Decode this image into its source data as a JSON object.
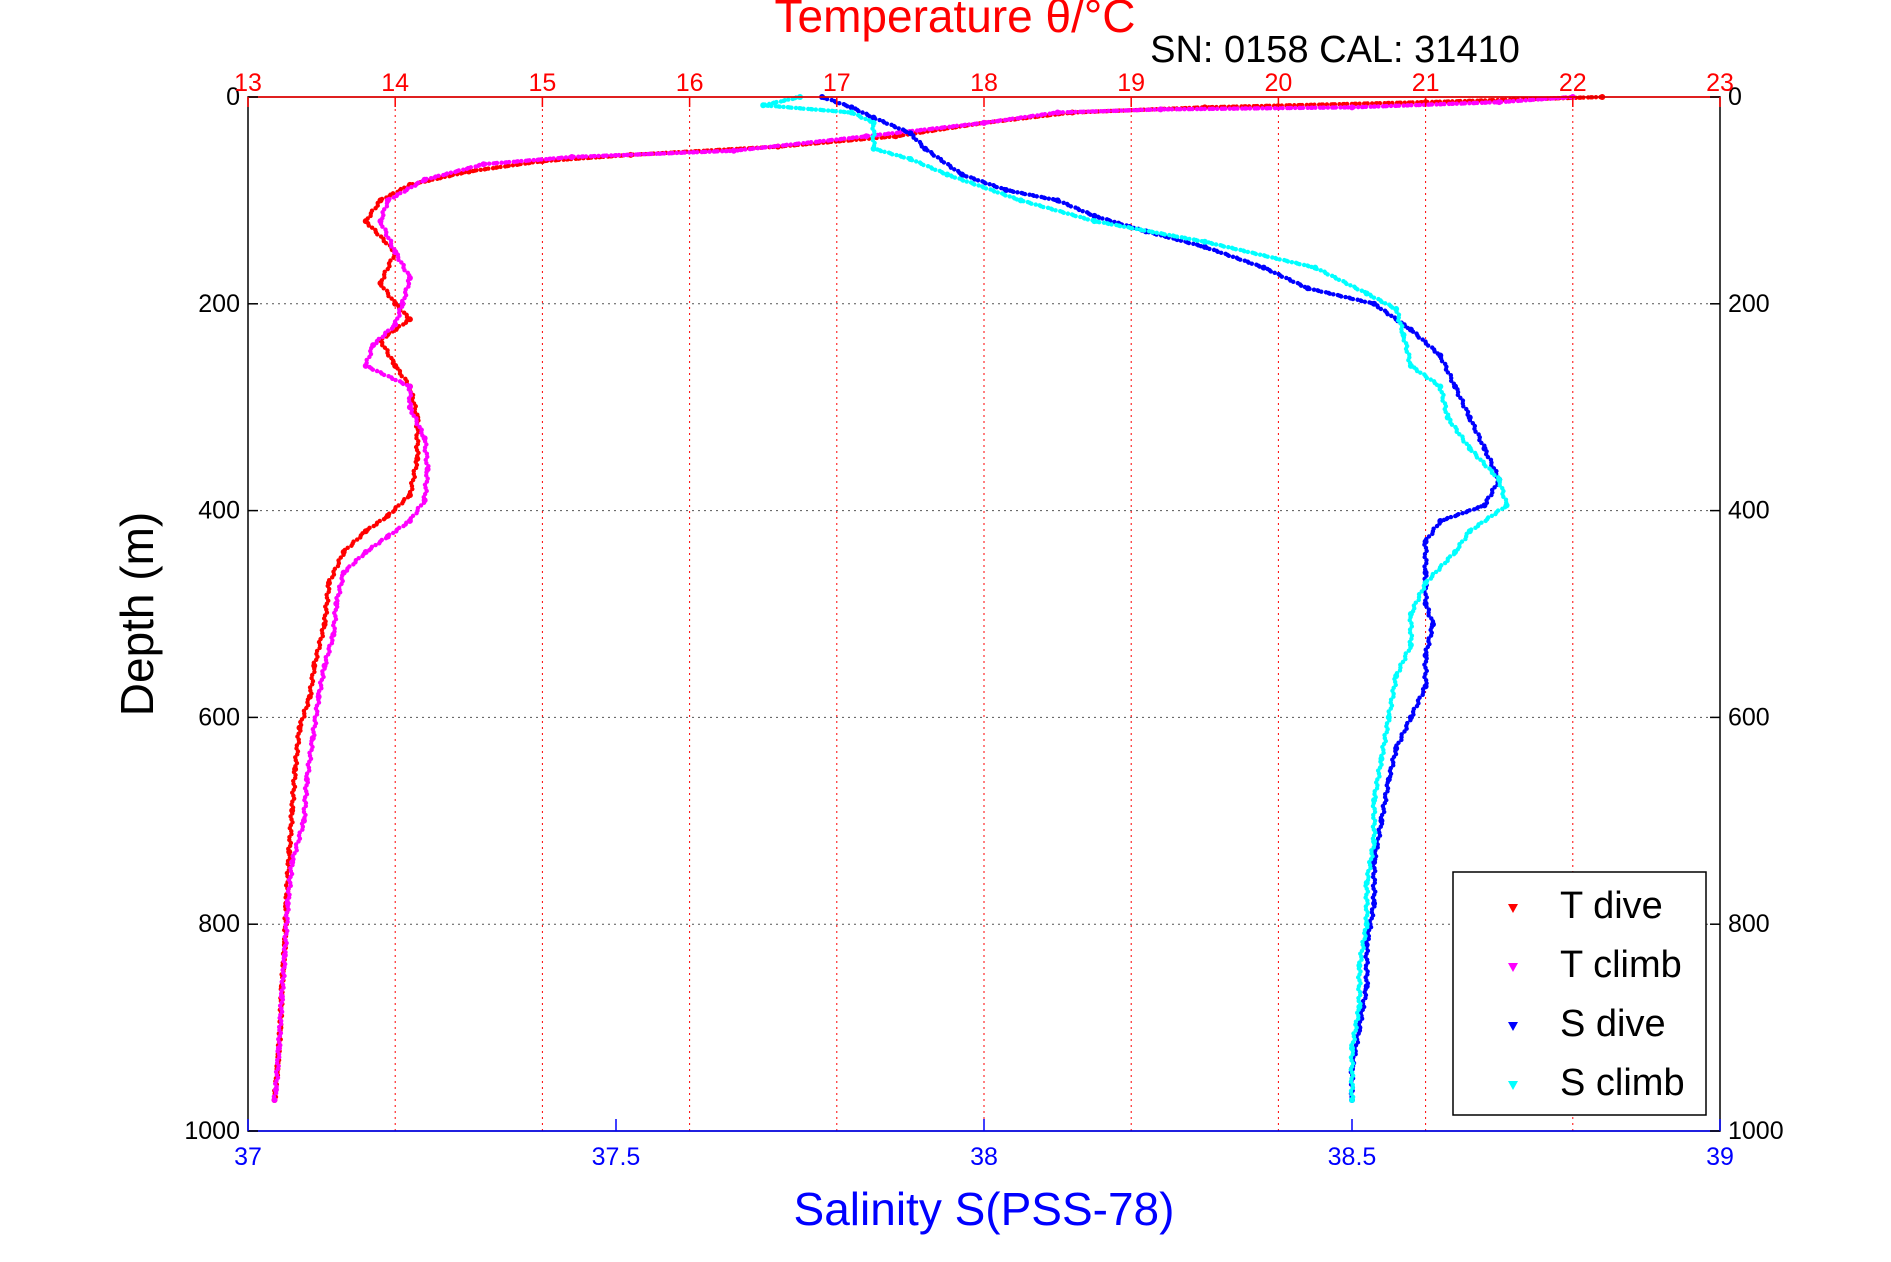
{
  "chart_data": {
    "type": "scatter",
    "title": "Temperature θ/°C",
    "subtitle": "SN: 0158  CAL: 31410",
    "ylabel": "Depth (m)",
    "xlabel_bottom": "Salinity S(PSS-78)",
    "ylim": [
      0,
      1000
    ],
    "y_reversed": true,
    "yticks": [
      "0",
      "200",
      "400",
      "600",
      "800",
      "1000"
    ],
    "yticks_right": [
      "0",
      "200",
      "400",
      "600",
      "800",
      "1000"
    ],
    "x_top": {
      "range": [
        13,
        23
      ],
      "ticks": [
        "13",
        "14",
        "15",
        "16",
        "17",
        "18",
        "19",
        "20",
        "21",
        "22",
        "23"
      ],
      "color": "#ff0000"
    },
    "x_bottom": {
      "range": [
        37,
        39
      ],
      "ticks": [
        "37",
        "37.5",
        "38",
        "38.5",
        "39"
      ],
      "color": "#0000ff"
    },
    "grid": true,
    "legend_position": "bottom-right",
    "series": [
      {
        "name": "T dive",
        "axis": "top",
        "color": "#ff0000",
        "points": [
          [
            22.2,
            0
          ],
          [
            21.0,
            5
          ],
          [
            19.5,
            10
          ],
          [
            18.6,
            15
          ],
          [
            18.0,
            25
          ],
          [
            17.4,
            38
          ],
          [
            16.6,
            48
          ],
          [
            15.6,
            56
          ],
          [
            15.0,
            62
          ],
          [
            14.5,
            72
          ],
          [
            14.1,
            85
          ],
          [
            13.9,
            100
          ],
          [
            13.8,
            120
          ],
          [
            14.0,
            150
          ],
          [
            13.9,
            180
          ],
          [
            14.0,
            200
          ],
          [
            14.1,
            215
          ],
          [
            13.9,
            235
          ],
          [
            14.0,
            260
          ],
          [
            14.1,
            280
          ],
          [
            14.15,
            310
          ],
          [
            14.15,
            350
          ],
          [
            14.1,
            385
          ],
          [
            13.95,
            405
          ],
          [
            13.8,
            420
          ],
          [
            13.65,
            440
          ],
          [
            13.55,
            470
          ],
          [
            13.52,
            510
          ],
          [
            13.45,
            550
          ],
          [
            13.42,
            580
          ],
          [
            13.35,
            610
          ],
          [
            13.32,
            650
          ],
          [
            13.3,
            690
          ],
          [
            13.28,
            730
          ],
          [
            13.26,
            780
          ],
          [
            13.25,
            820
          ],
          [
            13.23,
            860
          ],
          [
            13.22,
            900
          ],
          [
            13.2,
            940
          ],
          [
            13.18,
            970
          ]
        ]
      },
      {
        "name": "T climb",
        "axis": "top",
        "color": "#ff00ff",
        "points": [
          [
            22.0,
            0
          ],
          [
            21.5,
            5
          ],
          [
            20.5,
            10
          ],
          [
            19.2,
            12
          ],
          [
            18.5,
            15
          ],
          [
            18.0,
            25
          ],
          [
            17.2,
            38
          ],
          [
            16.3,
            52
          ],
          [
            15.2,
            58
          ],
          [
            14.6,
            65
          ],
          [
            14.2,
            80
          ],
          [
            13.95,
            100
          ],
          [
            13.9,
            120
          ],
          [
            14.0,
            150
          ],
          [
            14.1,
            175
          ],
          [
            14.05,
            200
          ],
          [
            14.0,
            220
          ],
          [
            13.85,
            240
          ],
          [
            13.8,
            260
          ],
          [
            14.1,
            280
          ],
          [
            14.1,
            300
          ],
          [
            14.2,
            330
          ],
          [
            14.22,
            360
          ],
          [
            14.2,
            390
          ],
          [
            14.1,
            410
          ],
          [
            13.95,
            425
          ],
          [
            13.8,
            440
          ],
          [
            13.65,
            460
          ],
          [
            13.6,
            490
          ],
          [
            13.58,
            520
          ],
          [
            13.52,
            550
          ],
          [
            13.48,
            580
          ],
          [
            13.44,
            620
          ],
          [
            13.4,
            660
          ],
          [
            13.38,
            700
          ],
          [
            13.3,
            740
          ],
          [
            13.27,
            780
          ],
          [
            13.25,
            830
          ],
          [
            13.23,
            870
          ],
          [
            13.21,
            920
          ],
          [
            13.19,
            960
          ],
          [
            13.18,
            970
          ]
        ]
      },
      {
        "name": "S dive",
        "axis": "bottom",
        "color": "#0000ff",
        "points": [
          [
            37.78,
            0
          ],
          [
            37.82,
            10
          ],
          [
            37.85,
            20
          ],
          [
            37.9,
            35
          ],
          [
            37.92,
            50
          ],
          [
            37.97,
            75
          ],
          [
            38.03,
            90
          ],
          [
            38.1,
            100
          ],
          [
            38.15,
            115
          ],
          [
            38.22,
            130
          ],
          [
            38.3,
            145
          ],
          [
            38.38,
            165
          ],
          [
            38.44,
            185
          ],
          [
            38.53,
            200
          ],
          [
            38.58,
            225
          ],
          [
            38.62,
            250
          ],
          [
            38.64,
            280
          ],
          [
            38.66,
            310
          ],
          [
            38.68,
            340
          ],
          [
            38.7,
            370
          ],
          [
            38.68,
            395
          ],
          [
            38.62,
            410
          ],
          [
            38.6,
            430
          ],
          [
            38.6,
            460
          ],
          [
            38.6,
            490
          ],
          [
            38.61,
            510
          ],
          [
            38.6,
            540
          ],
          [
            38.6,
            570
          ],
          [
            38.58,
            600
          ],
          [
            38.56,
            630
          ],
          [
            38.55,
            660
          ],
          [
            38.54,
            700
          ],
          [
            38.53,
            740
          ],
          [
            38.53,
            780
          ],
          [
            38.52,
            820
          ],
          [
            38.52,
            860
          ],
          [
            38.51,
            900
          ],
          [
            38.5,
            940
          ],
          [
            38.5,
            970
          ]
        ]
      },
      {
        "name": "S climb",
        "axis": "bottom",
        "color": "#00ffff",
        "points": [
          [
            37.75,
            0
          ],
          [
            37.7,
            8
          ],
          [
            37.82,
            15
          ],
          [
            37.85,
            25
          ],
          [
            37.85,
            50
          ],
          [
            37.9,
            60
          ],
          [
            37.95,
            75
          ],
          [
            38.05,
            100
          ],
          [
            38.15,
            120
          ],
          [
            38.3,
            140
          ],
          [
            38.45,
            165
          ],
          [
            38.52,
            190
          ],
          [
            38.56,
            205
          ],
          [
            38.57,
            230
          ],
          [
            38.58,
            260
          ],
          [
            38.62,
            280
          ],
          [
            38.63,
            310
          ],
          [
            38.66,
            340
          ],
          [
            38.7,
            370
          ],
          [
            38.71,
            395
          ],
          [
            38.66,
            420
          ],
          [
            38.64,
            440
          ],
          [
            38.6,
            470
          ],
          [
            38.58,
            500
          ],
          [
            38.58,
            530
          ],
          [
            38.56,
            560
          ],
          [
            38.55,
            600
          ],
          [
            38.54,
            640
          ],
          [
            38.53,
            680
          ],
          [
            38.53,
            720
          ],
          [
            38.52,
            760
          ],
          [
            38.52,
            800
          ],
          [
            38.51,
            840
          ],
          [
            38.51,
            880
          ],
          [
            38.5,
            920
          ],
          [
            38.5,
            970
          ]
        ]
      }
    ]
  }
}
